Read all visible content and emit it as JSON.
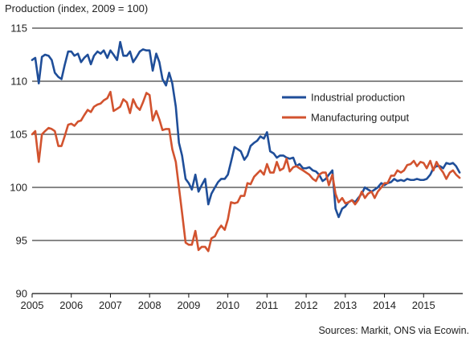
{
  "chart_data": {
    "type": "line",
    "title": "",
    "ylabel": "Production (index, 2009 = 100)",
    "xlabel": "",
    "ylim": [
      90,
      115
    ],
    "xlim": [
      2005,
      2016
    ],
    "yticks": [
      90,
      95,
      100,
      105,
      110,
      115
    ],
    "xticks": [
      "2005",
      "2006",
      "2007",
      "2008",
      "2009",
      "2010",
      "2011",
      "2012",
      "2013",
      "2014",
      "2015"
    ],
    "grid": "horizontal",
    "legend_position": "center-right",
    "source": "Sources: Markit, ONS via Ecowin.",
    "series": [
      {
        "name": "Industrial production",
        "color": "#1f4e99",
        "x": [
          2005.0,
          2005.08,
          2005.17,
          2005.25,
          2005.33,
          2005.42,
          2005.5,
          2005.58,
          2005.67,
          2005.75,
          2005.83,
          2005.92,
          2006.0,
          2006.08,
          2006.17,
          2006.25,
          2006.33,
          2006.42,
          2006.5,
          2006.58,
          2006.67,
          2006.75,
          2006.83,
          2006.92,
          2007.0,
          2007.08,
          2007.17,
          2007.25,
          2007.33,
          2007.42,
          2007.5,
          2007.58,
          2007.67,
          2007.75,
          2007.83,
          2007.92,
          2008.0,
          2008.08,
          2008.17,
          2008.25,
          2008.33,
          2008.42,
          2008.5,
          2008.58,
          2008.67,
          2008.75,
          2008.83,
          2008.92,
          2009.0,
          2009.08,
          2009.17,
          2009.25,
          2009.33,
          2009.42,
          2009.5,
          2009.58,
          2009.67,
          2009.75,
          2009.83,
          2009.92,
          2010.0,
          2010.08,
          2010.17,
          2010.25,
          2010.33,
          2010.42,
          2010.5,
          2010.58,
          2010.67,
          2010.75,
          2010.83,
          2010.92,
          2011.0,
          2011.08,
          2011.17,
          2011.25,
          2011.33,
          2011.42,
          2011.5,
          2011.58,
          2011.67,
          2011.75,
          2011.83,
          2011.92,
          2012.0,
          2012.08,
          2012.17,
          2012.25,
          2012.33,
          2012.42,
          2012.5,
          2012.58,
          2012.67,
          2012.75,
          2012.83,
          2012.92,
          2013.0,
          2013.08,
          2013.17,
          2013.25,
          2013.33,
          2013.42,
          2013.5,
          2013.58,
          2013.67,
          2013.75,
          2013.83,
          2013.92,
          2014.0,
          2014.08,
          2014.17,
          2014.25,
          2014.33,
          2014.42,
          2014.5,
          2014.58,
          2014.67,
          2014.75,
          2014.83,
          2014.92,
          2015.0,
          2015.08,
          2015.17,
          2015.25,
          2015.33,
          2015.42,
          2015.5,
          2015.58,
          2015.67,
          2015.75,
          2015.83,
          2015.92
        ],
        "values": [
          112.0,
          112.2,
          109.8,
          112.3,
          112.5,
          112.4,
          112.0,
          110.8,
          110.4,
          110.2,
          111.5,
          112.8,
          112.8,
          112.4,
          112.6,
          111.8,
          112.2,
          112.5,
          111.6,
          112.4,
          112.8,
          112.6,
          112.9,
          112.2,
          112.9,
          112.5,
          112.0,
          113.7,
          112.4,
          112.4,
          112.8,
          111.8,
          112.3,
          112.8,
          113.0,
          112.9,
          112.9,
          111.0,
          112.6,
          111.8,
          110.2,
          109.6,
          110.8,
          109.8,
          107.6,
          104.2,
          103.0,
          100.8,
          100.4,
          99.8,
          101.2,
          99.6,
          100.2,
          100.8,
          98.4,
          99.4,
          100.0,
          100.5,
          100.8,
          100.8,
          101.2,
          102.4,
          103.8,
          103.6,
          103.4,
          102.6,
          103.0,
          103.9,
          104.2,
          104.4,
          104.8,
          104.6,
          105.2,
          103.4,
          103.2,
          102.8,
          103.0,
          103.0,
          102.8,
          102.7,
          102.8,
          102.0,
          102.2,
          101.8,
          101.8,
          101.9,
          101.6,
          101.5,
          101.2,
          100.6,
          100.8,
          101.2,
          101.6,
          98.0,
          97.2,
          98.0,
          98.2,
          98.6,
          98.8,
          98.6,
          99.0,
          99.4,
          100.0,
          99.8,
          99.6,
          99.8,
          100.0,
          100.4,
          100.2,
          100.4,
          100.5,
          100.8,
          100.6,
          100.7,
          100.6,
          100.8,
          100.7,
          100.7,
          100.8,
          100.7,
          100.7,
          100.8,
          101.2,
          101.8,
          102.0,
          102.0,
          101.8,
          102.3,
          102.2,
          102.3,
          102.0,
          101.4
        ]
      },
      {
        "name": "Manufacturing output",
        "color": "#d2532f",
        "x": [
          2005.0,
          2005.08,
          2005.17,
          2005.25,
          2005.33,
          2005.42,
          2005.5,
          2005.58,
          2005.67,
          2005.75,
          2005.83,
          2005.92,
          2006.0,
          2006.08,
          2006.17,
          2006.25,
          2006.33,
          2006.42,
          2006.5,
          2006.58,
          2006.67,
          2006.75,
          2006.83,
          2006.92,
          2007.0,
          2007.08,
          2007.17,
          2007.25,
          2007.33,
          2007.42,
          2007.5,
          2007.58,
          2007.67,
          2007.75,
          2007.83,
          2007.92,
          2008.0,
          2008.08,
          2008.17,
          2008.25,
          2008.33,
          2008.42,
          2008.5,
          2008.58,
          2008.67,
          2008.75,
          2008.83,
          2008.92,
          2009.0,
          2009.08,
          2009.17,
          2009.25,
          2009.33,
          2009.42,
          2009.5,
          2009.58,
          2009.67,
          2009.75,
          2009.83,
          2009.92,
          2010.0,
          2010.08,
          2010.17,
          2010.25,
          2010.33,
          2010.42,
          2010.5,
          2010.58,
          2010.67,
          2010.75,
          2010.83,
          2010.92,
          2011.0,
          2011.08,
          2011.17,
          2011.25,
          2011.33,
          2011.42,
          2011.5,
          2011.58,
          2011.67,
          2011.75,
          2011.83,
          2011.92,
          2012.0,
          2012.08,
          2012.17,
          2012.25,
          2012.33,
          2012.42,
          2012.5,
          2012.58,
          2012.67,
          2012.75,
          2012.83,
          2012.92,
          2013.0,
          2013.08,
          2013.17,
          2013.25,
          2013.33,
          2013.42,
          2013.5,
          2013.58,
          2013.67,
          2013.75,
          2013.83,
          2013.92,
          2014.0,
          2014.08,
          2014.17,
          2014.25,
          2014.33,
          2014.42,
          2014.5,
          2014.58,
          2014.67,
          2014.75,
          2014.83,
          2014.92,
          2015.0,
          2015.08,
          2015.17,
          2015.25,
          2015.33,
          2015.42,
          2015.5,
          2015.58,
          2015.67,
          2015.75,
          2015.83,
          2015.92
        ],
        "values": [
          105.0,
          105.3,
          102.4,
          105.0,
          105.3,
          105.6,
          105.5,
          105.3,
          103.9,
          103.9,
          104.8,
          105.9,
          106.0,
          105.8,
          106.2,
          106.3,
          106.8,
          107.3,
          107.1,
          107.6,
          107.8,
          107.9,
          108.2,
          108.4,
          109.0,
          107.2,
          107.4,
          107.6,
          108.3,
          108.0,
          107.0,
          108.3,
          107.6,
          107.3,
          108.0,
          108.9,
          108.7,
          106.3,
          107.2,
          106.4,
          105.4,
          105.5,
          105.5,
          103.6,
          102.4,
          100.0,
          97.6,
          94.8,
          94.6,
          94.6,
          95.9,
          94.1,
          94.4,
          94.4,
          94.0,
          95.2,
          95.4,
          96.0,
          96.4,
          96.0,
          97.0,
          98.6,
          98.5,
          98.6,
          99.2,
          99.2,
          100.4,
          100.3,
          101.0,
          101.3,
          101.6,
          101.2,
          102.2,
          101.4,
          101.4,
          102.4,
          101.6,
          101.8,
          102.7,
          101.5,
          101.9,
          102.0,
          101.8,
          101.6,
          101.4,
          101.2,
          100.8,
          100.6,
          101.2,
          101.4,
          101.4,
          100.2,
          101.2,
          99.4,
          98.6,
          99.0,
          98.5,
          98.6,
          98.8,
          98.4,
          98.8,
          99.6,
          99.0,
          99.4,
          99.6,
          99.0,
          99.6,
          100.0,
          100.4,
          100.4,
          101.1,
          101.1,
          101.6,
          101.4,
          101.6,
          102.1,
          102.2,
          102.5,
          102.0,
          102.4,
          102.3,
          101.8,
          102.5,
          101.6,
          102.4,
          101.8,
          101.4,
          100.8,
          101.4,
          101.6,
          101.2,
          100.9
        ]
      }
    ]
  }
}
